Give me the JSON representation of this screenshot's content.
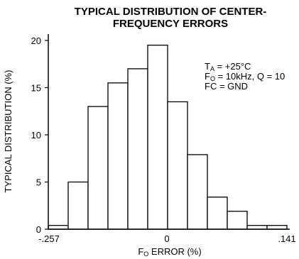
{
  "chart_data": {
    "type": "bar",
    "title_lines": [
      "TYPICAL DISTRIBUTION OF CENTER-",
      "FREQUENCY ERRORS"
    ],
    "xlabel": {
      "main": "F",
      "sub": "O",
      "rest": " ERROR (%)"
    },
    "ylabel": "TYPICAL DISTRIBUTION (%)",
    "ylim": [
      0,
      20
    ],
    "y_ticks": [
      "0",
      "5",
      "10",
      "15",
      "20"
    ],
    "x_tick_labels": [
      "-.257",
      "0",
      ".141"
    ],
    "bins": 13,
    "values": [
      0.4,
      5,
      13,
      15.5,
      17,
      19.5,
      13.5,
      7.9,
      3.4,
      1.9,
      0.4,
      0.4,
      0
    ],
    "grid": false,
    "annotations": [
      {
        "main": "T",
        "sub": "A",
        "rest": " = +25°C"
      },
      {
        "main": "F",
        "sub": "O",
        "rest": " = 10kHz, Q = 10"
      },
      {
        "main": "FC = GND",
        "sub": "",
        "rest": ""
      }
    ]
  }
}
